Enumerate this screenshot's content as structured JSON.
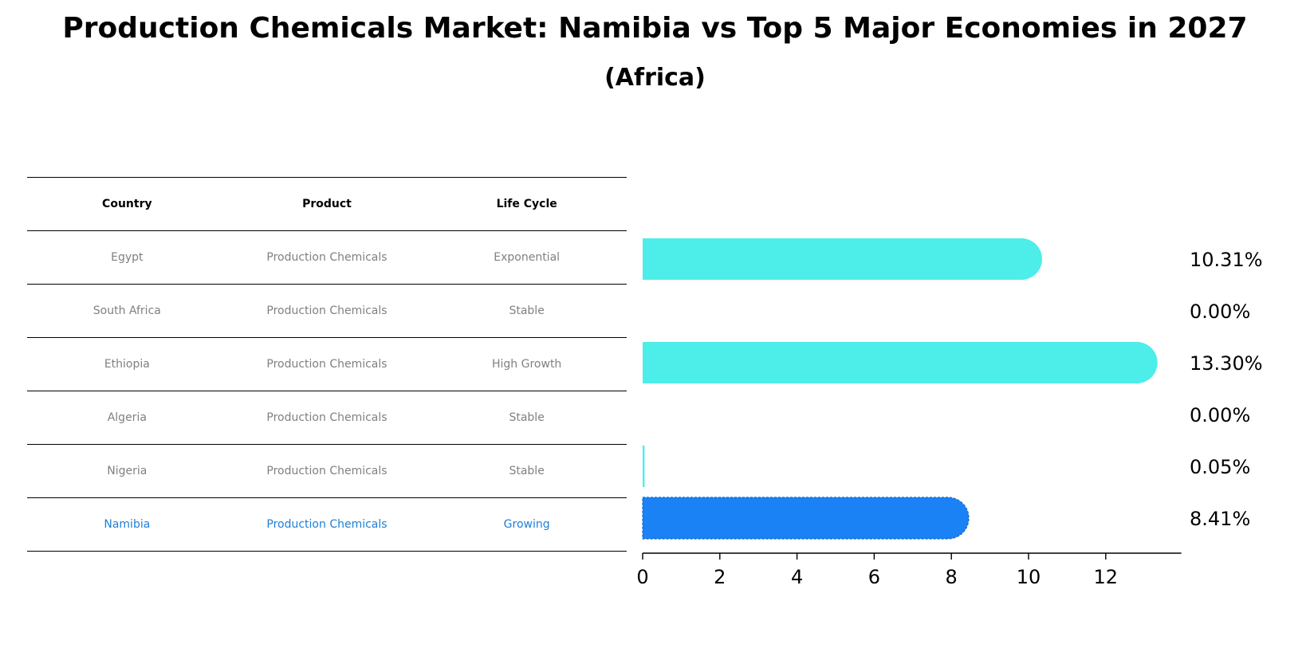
{
  "title": "Production Chemicals Market: Namibia vs Top 5 Major Economies in 2027",
  "subtitle": "(Africa)",
  "colors": {
    "bar": "#4DEDEA",
    "highlight_bar": "#1A82F5",
    "highlight_text": "#1F7FD6",
    "row_text": "#808080"
  },
  "table": {
    "headers": [
      "Country",
      "Product",
      "Life Cycle"
    ],
    "rows": [
      {
        "country": "Egypt",
        "product": "Production Chemicals",
        "life_cycle": "Exponential",
        "highlight": false
      },
      {
        "country": "South Africa",
        "product": "Production Chemicals",
        "life_cycle": "Stable",
        "highlight": false
      },
      {
        "country": "Ethiopia",
        "product": "Production Chemicals",
        "life_cycle": "High Growth",
        "highlight": false
      },
      {
        "country": "Algeria",
        "product": "Production Chemicals",
        "life_cycle": "Stable",
        "highlight": false
      },
      {
        "country": "Nigeria",
        "product": "Production Chemicals",
        "life_cycle": "Stable",
        "highlight": false
      },
      {
        "country": "Namibia",
        "product": "Production Chemicals",
        "life_cycle": "Growing",
        "highlight": true
      }
    ]
  },
  "chart_data": {
    "type": "bar",
    "orientation": "horizontal",
    "categories": [
      "Egypt",
      "South Africa",
      "Ethiopia",
      "Algeria",
      "Nigeria",
      "Namibia"
    ],
    "values": [
      10.31,
      0.0,
      13.3,
      0.0,
      0.05,
      8.41
    ],
    "value_labels": [
      "10.31%",
      "0.00%",
      "13.30%",
      "0.00%",
      "0.05%",
      "8.41%"
    ],
    "highlight_category": "Namibia",
    "xlim": [
      0,
      14
    ],
    "xticks": [
      0,
      2,
      4,
      6,
      8,
      10,
      12
    ],
    "title": "Production Chemicals Market: Namibia vs Top 5 Major Economies in 2027",
    "xlabel": "",
    "ylabel": ""
  }
}
